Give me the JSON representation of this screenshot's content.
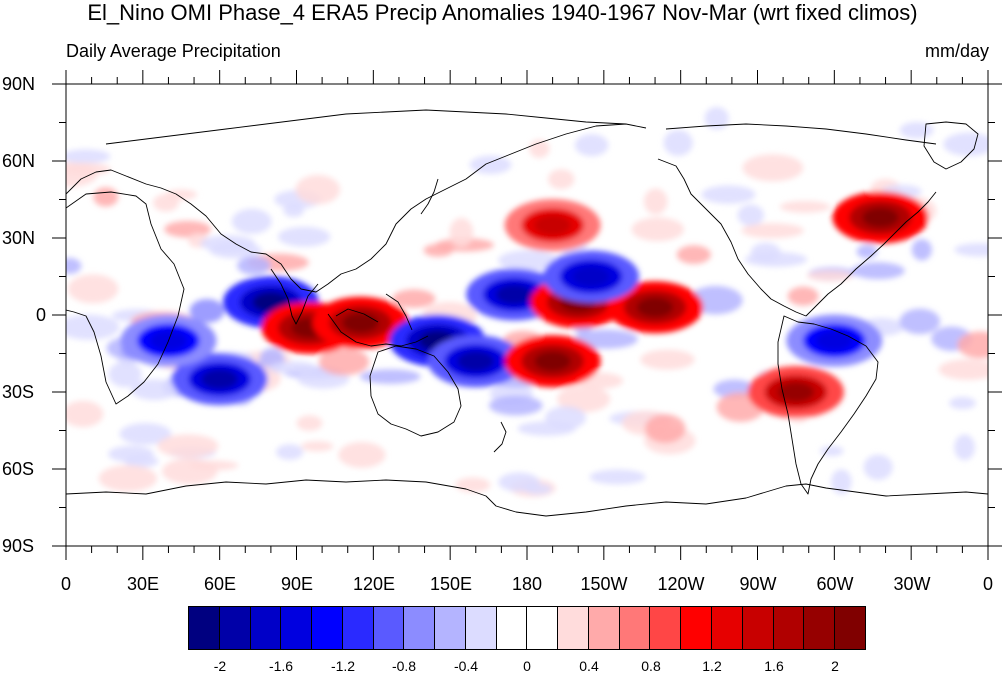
{
  "title": "El_Nino OMI Phase_4 ERA5 Precip Anomalies 1940-1967 Nov-Mar (wrt fixed climos)",
  "subtitle_left": "Daily Average Precipitation",
  "subtitle_right": "mm/day",
  "lat_labels": [
    "90N",
    "60N",
    "30N",
    "0",
    "30S",
    "60S",
    "90S"
  ],
  "lon_labels": [
    "0",
    "30E",
    "60E",
    "90E",
    "120E",
    "150E",
    "180",
    "150W",
    "120W",
    "90W",
    "60W",
    "30W",
    "0"
  ],
  "colorbar": {
    "colors": [
      "#000080",
      "#0000a8",
      "#0000c8",
      "#0000e0",
      "#0000ff",
      "#2a2aff",
      "#5a5aff",
      "#8c8cff",
      "#b4b4ff",
      "#dcdcff",
      "#ffffff",
      "#ffffff",
      "#ffdcdc",
      "#ffaaaa",
      "#ff7878",
      "#ff4646",
      "#ff0000",
      "#e60000",
      "#c80000",
      "#b00000",
      "#960000",
      "#800000"
    ],
    "labels": [
      "-2",
      "-1.6",
      "-1.2",
      "-0.8",
      "-0.4",
      "0",
      "0.4",
      "0.8",
      "1.2",
      "1.6",
      "2"
    ]
  },
  "chart_data": {
    "type": "heatmap",
    "variable": "Precipitation anomaly",
    "units": "mm/day",
    "xlim": [
      0,
      360
    ],
    "ylim": [
      -90,
      90
    ],
    "levels": [
      -2,
      -1.8,
      -1.6,
      -1.4,
      -1.2,
      -1,
      -0.8,
      -0.6,
      -0.4,
      -0.2,
      0,
      0.2,
      0.4,
      0.6,
      0.8,
      1,
      1.2,
      1.4,
      1.6,
      1.8,
      2
    ],
    "features": [
      {
        "lon": 80,
        "lat": 5,
        "value": -2.2,
        "region": "equatorial Indian Ocean"
      },
      {
        "lon": 60,
        "lat": -25,
        "value": -2.0,
        "region": "SW Indian Ocean"
      },
      {
        "lon": 95,
        "lat": -5,
        "value": 2.0,
        "region": "Indian Ocean"
      },
      {
        "lon": 115,
        "lat": -3,
        "value": 2.2,
        "region": "Maritime Continent"
      },
      {
        "lon": 145,
        "lat": -10,
        "value": -2.2,
        "region": "Coral Sea"
      },
      {
        "lon": 160,
        "lat": -18,
        "value": -2.0,
        "region": "SW Pacific"
      },
      {
        "lon": 175,
        "lat": 8,
        "value": -2.0,
        "region": "W Pacific"
      },
      {
        "lon": 200,
        "lat": 5,
        "value": 2.2,
        "region": "central Pacific"
      },
      {
        "lon": 230,
        "lat": 3,
        "value": 2.0,
        "region": "E Pacific"
      },
      {
        "lon": 190,
        "lat": -18,
        "value": 2.0,
        "region": "S Pacific"
      },
      {
        "lon": 190,
        "lat": 35,
        "value": 1.5,
        "region": "N Pacific"
      },
      {
        "lon": 205,
        "lat": 15,
        "value": -1.8,
        "region": "N central Pacific"
      },
      {
        "lon": 318,
        "lat": 38,
        "value": 2.0,
        "region": "N Atlantic"
      },
      {
        "lon": 285,
        "lat": -30,
        "value": 1.8,
        "region": "S America"
      },
      {
        "lon": 300,
        "lat": -10,
        "value": -1.5,
        "region": "Brazil"
      },
      {
        "lon": 40,
        "lat": -10,
        "value": -1.6,
        "region": "SE Africa"
      }
    ]
  }
}
